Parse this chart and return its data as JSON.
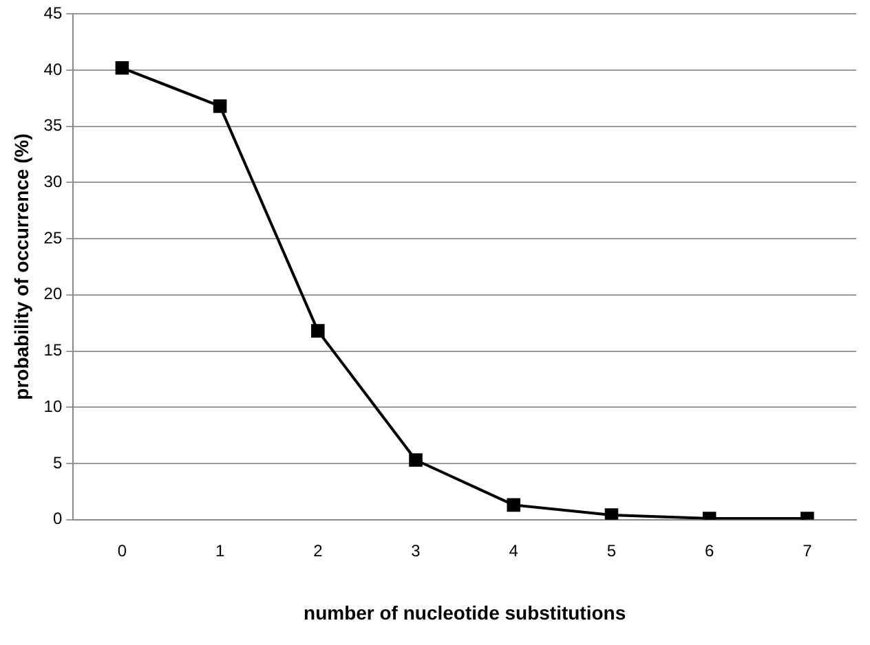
{
  "chart_data": {
    "type": "line",
    "xlabel": "number of nucleotide substitutions",
    "ylabel": "probability of occurrence (%)",
    "categories": [
      "0",
      "1",
      "2",
      "3",
      "4",
      "5",
      "6",
      "7"
    ],
    "series": [
      {
        "color": "#000000",
        "values": [
          40.2,
          36.8,
          16.8,
          5.3,
          1.3,
          0.4,
          0.1,
          0.1
        ]
      }
    ],
    "ylim": [
      0,
      45
    ],
    "yticks": [
      0,
      5,
      10,
      15,
      20,
      25,
      30,
      35,
      40,
      45
    ],
    "grid": "y",
    "legend": false,
    "marker": "square",
    "line_style": "solid"
  }
}
